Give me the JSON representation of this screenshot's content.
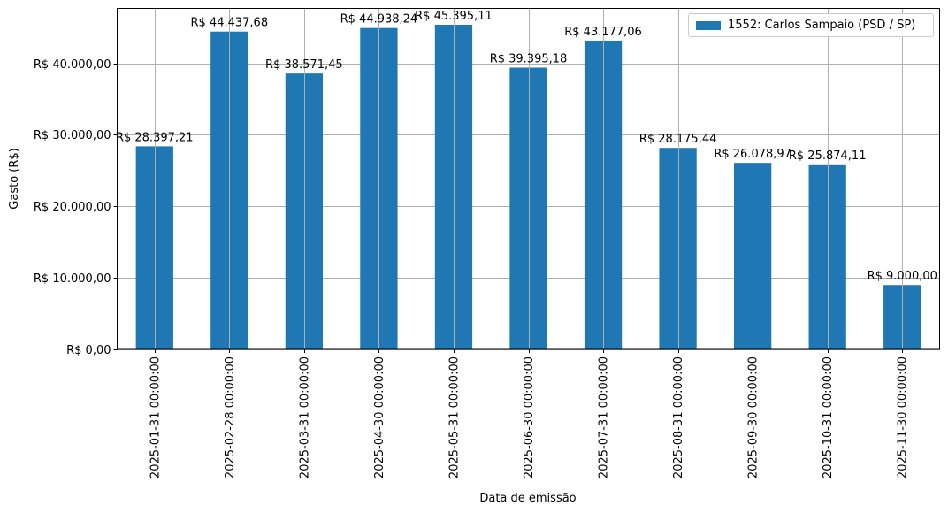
{
  "chart_data": {
    "type": "bar",
    "title": "",
    "xlabel": "Data de emissão",
    "ylabel": "Gasto (R$)",
    "ylim": [
      0,
      47680
    ],
    "grid": true,
    "legend_position": "upper right",
    "categories": [
      "2025-01-31 00:00:00",
      "2025-02-28 00:00:00",
      "2025-03-31 00:00:00",
      "2025-04-30 00:00:00",
      "2025-05-31 00:00:00",
      "2025-06-30 00:00:00",
      "2025-07-31 00:00:00",
      "2025-08-31 00:00:00",
      "2025-09-30 00:00:00",
      "2025-10-31 00:00:00",
      "2025-11-30 00:00:00"
    ],
    "series": [
      {
        "name": "1552: Carlos Sampaio (PSD / SP)",
        "color": "#1f77b4",
        "values": [
          28397.21,
          44437.68,
          38571.45,
          44938.24,
          45395.11,
          39395.18,
          43177.06,
          28175.44,
          26078.97,
          25874.11,
          9000.0
        ],
        "labels": [
          "R$ 28.397,21",
          "R$ 44.437,68",
          "R$ 38.571,45",
          "R$ 44.938,24",
          "R$ 45.395,11",
          "R$ 39.395,18",
          "R$ 43.177,06",
          "R$ 28.175,44",
          "R$ 26.078,97",
          "R$ 25.874,11",
          "R$ 9.000,00"
        ]
      }
    ],
    "yticks": [
      {
        "value": 0,
        "label": "R$ 0,00"
      },
      {
        "value": 10000,
        "label": "R$ 10.000,00"
      },
      {
        "value": 20000,
        "label": "R$ 20.000,00"
      },
      {
        "value": 30000,
        "label": "R$ 30.000,00"
      },
      {
        "value": 40000,
        "label": "R$ 40.000,00"
      }
    ]
  },
  "colors": {
    "bar": "#1f77b4",
    "grid": "#b0b0b0",
    "axis": "#000000"
  }
}
